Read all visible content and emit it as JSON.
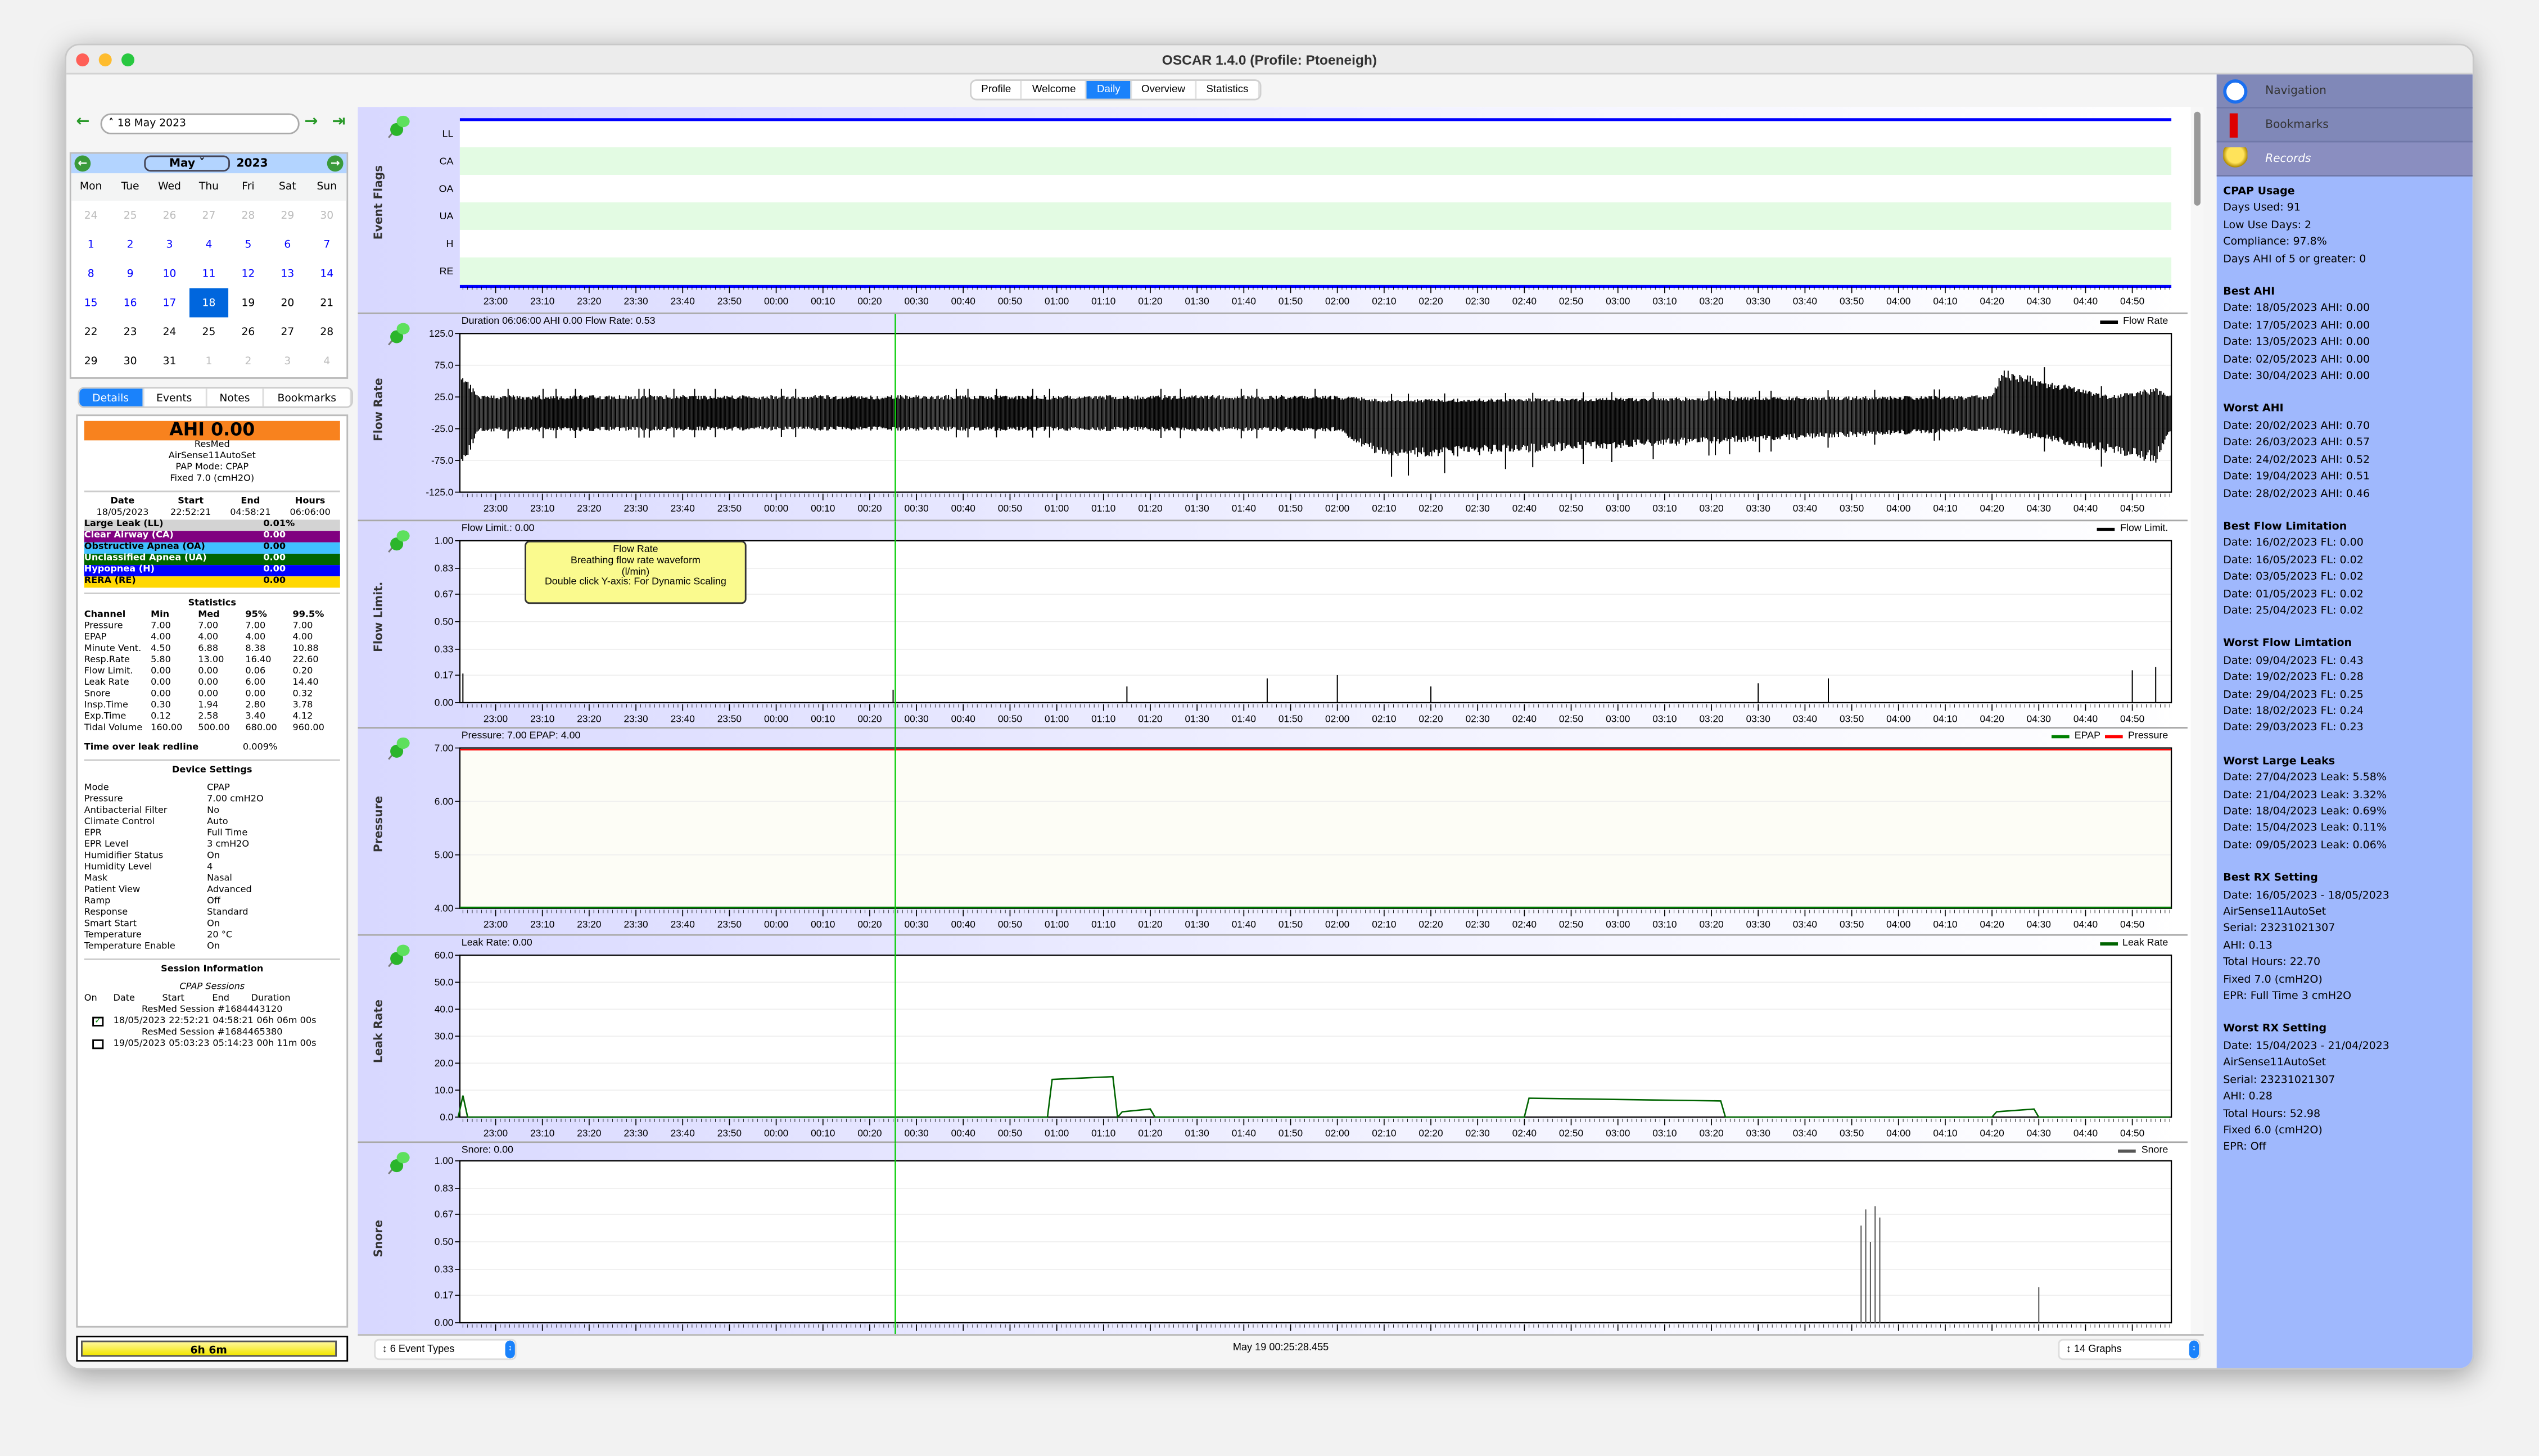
{
  "window": {
    "title": "OSCAR 1.4.0 (Profile: Ptoeneigh)"
  },
  "main_tabs": [
    {
      "label": "Profile"
    },
    {
      "label": "Welcome"
    },
    {
      "label": "Daily",
      "active": true
    },
    {
      "label": "Overview"
    },
    {
      "label": "Statistics"
    }
  ],
  "date_nav": {
    "date": "18 May 2023"
  },
  "calendar": {
    "month": "May",
    "year": "2023",
    "dow": [
      "Mon",
      "Tue",
      "Wed",
      "Thu",
      "Fri",
      "Sat",
      "Sun"
    ],
    "weeks": [
      [
        [
          "24",
          "other"
        ],
        [
          "25",
          "other"
        ],
        [
          "26",
          "other"
        ],
        [
          "27",
          "other"
        ],
        [
          "28",
          "other"
        ],
        [
          "29",
          "other"
        ],
        [
          "30",
          "other"
        ]
      ],
      [
        [
          "1",
          "past"
        ],
        [
          "2",
          "past"
        ],
        [
          "3",
          "past"
        ],
        [
          "4",
          "past"
        ],
        [
          "5",
          "past"
        ],
        [
          "6",
          "past"
        ],
        [
          "7",
          "past"
        ]
      ],
      [
        [
          "8",
          "past"
        ],
        [
          "9",
          "past"
        ],
        [
          "10",
          "past"
        ],
        [
          "11",
          "past"
        ],
        [
          "12",
          "past"
        ],
        [
          "13",
          "past"
        ],
        [
          "14",
          "past"
        ]
      ],
      [
        [
          "15",
          "past"
        ],
        [
          "16",
          "past"
        ],
        [
          "17",
          "past"
        ],
        [
          "18",
          "sel"
        ],
        [
          "19",
          "norm"
        ],
        [
          "20",
          "norm"
        ],
        [
          "21",
          "norm"
        ]
      ],
      [
        [
          "22",
          "norm"
        ],
        [
          "23",
          "norm"
        ],
        [
          "24",
          "norm"
        ],
        [
          "25",
          "norm"
        ],
        [
          "26",
          "norm"
        ],
        [
          "27",
          "norm"
        ],
        [
          "28",
          "norm"
        ]
      ],
      [
        [
          "29",
          "norm"
        ],
        [
          "30",
          "norm"
        ],
        [
          "31",
          "norm"
        ],
        [
          "1",
          "other"
        ],
        [
          "2",
          "other"
        ],
        [
          "3",
          "other"
        ],
        [
          "4",
          "other"
        ]
      ]
    ]
  },
  "left_tabs": [
    {
      "label": "Details",
      "active": true
    },
    {
      "label": "Events"
    },
    {
      "label": "Notes"
    },
    {
      "label": "Bookmarks"
    }
  ],
  "details": {
    "ahi": "AHI 0.00",
    "device_lines": [
      "ResMed",
      "AirSense11AutoSet",
      "PAP Mode: CPAP",
      "Fixed 7.0 (cmH2O)"
    ],
    "summary_headers": [
      "Date",
      "Start",
      "End",
      "Hours"
    ],
    "summary_values": [
      "18/05/2023",
      "22:52:21",
      "04:58:21",
      "06:06:00"
    ],
    "events": [
      {
        "label": "Large Leak (LL)",
        "value": "0.01%",
        "bg": "#d3d3d3",
        "fg": "#000000"
      },
      {
        "label": "Clear Airway (CA)",
        "value": "0.00",
        "bg": "#800080",
        "fg": "#ffffff"
      },
      {
        "label": "Obstructive Apnea (OA)",
        "value": "0.00",
        "bg": "#40c0ff",
        "fg": "#000000"
      },
      {
        "label": "Unclassified Apnea (UA)",
        "value": "0.00",
        "bg": "#006400",
        "fg": "#ffffff"
      },
      {
        "label": "Hypopnea (H)",
        "value": "0.00",
        "bg": "#0000ff",
        "fg": "#ffffff"
      },
      {
        "label": "RERA (RE)",
        "value": "0.00",
        "bg": "#ffd700",
        "fg": "#000000"
      }
    ],
    "statistics_title": "Statistics",
    "stats_headers": [
      "Channel",
      "Min",
      "Med",
      "95%",
      "99.5%"
    ],
    "stats": [
      [
        "Pressure",
        "7.00",
        "7.00",
        "7.00",
        "7.00"
      ],
      [
        "EPAP",
        "4.00",
        "4.00",
        "4.00",
        "4.00"
      ],
      [
        "Minute Vent.",
        "4.50",
        "6.88",
        "8.38",
        "10.88"
      ],
      [
        "Resp.Rate",
        "5.80",
        "13.00",
        "16.40",
        "22.60"
      ],
      [
        "Flow Limit.",
        "0.00",
        "0.00",
        "0.06",
        "0.20"
      ],
      [
        "Leak Rate",
        "0.00",
        "0.00",
        "6.00",
        "14.40"
      ],
      [
        "Snore",
        "0.00",
        "0.00",
        "0.00",
        "0.32"
      ],
      [
        "Insp.Time",
        "0.30",
        "1.94",
        "2.80",
        "3.78"
      ],
      [
        "Exp.Time",
        "0.12",
        "2.58",
        "3.40",
        "4.12"
      ],
      [
        "Tidal Volume",
        "160.00",
        "500.00",
        "680.00",
        "960.00"
      ]
    ],
    "leak_redline_label": "Time over leak redline",
    "leak_redline_value": "0.009%",
    "device_settings_title": "Device Settings",
    "device_settings": [
      [
        "Mode",
        "CPAP"
      ],
      [
        "Pressure",
        "7.00 cmH2O"
      ],
      [
        "Antibacterial Filter",
        "No"
      ],
      [
        "Climate Control",
        "Auto"
      ],
      [
        "EPR",
        "Full Time"
      ],
      [
        "EPR Level",
        "3 cmH2O"
      ],
      [
        "Humidifier Status",
        "On"
      ],
      [
        "Humidity Level",
        "4"
      ],
      [
        "Mask",
        "Nasal"
      ],
      [
        "Patient View",
        "Advanced"
      ],
      [
        "Ramp",
        "Off"
      ],
      [
        "Response",
        "Standard"
      ],
      [
        "Smart Start",
        "On"
      ],
      [
        "Temperature",
        "20 °C"
      ],
      [
        "Temperature Enable",
        "On"
      ]
    ],
    "session_title": "Session Information",
    "sessions_subtitle": "CPAP Sessions",
    "session_headers": [
      "On",
      "Date",
      "Start",
      "End",
      "Duration"
    ],
    "sessions": [
      {
        "name": "ResMed Session #1684443120",
        "on": true,
        "date": "18/05/2023",
        "start": "22:52:21",
        "end": "04:58:21",
        "duration": "06h 06m 00s"
      },
      {
        "name": "ResMed Session #1684465380",
        "on": false,
        "date": "19/05/2023",
        "start": "05:03:23",
        "end": "05:14:23",
        "duration": "00h 11m 00s"
      }
    ]
  },
  "usage_bar": {
    "label": "6h 6m",
    "fraction": 0.98
  },
  "time_axis": {
    "start": "22:52:21",
    "end": "04:58:21",
    "ticks": [
      "23:00",
      "23:10",
      "23:20",
      "23:30",
      "23:40",
      "23:50",
      "00:00",
      "00:10",
      "00:20",
      "00:30",
      "00:40",
      "00:50",
      "01:00",
      "01:10",
      "01:20",
      "01:30",
      "01:40",
      "01:50",
      "02:00",
      "02:10",
      "02:20",
      "02:30",
      "02:40",
      "02:50",
      "03:00",
      "03:10",
      "03:20",
      "03:30",
      "03:40",
      "03:50",
      "04:00",
      "04:10",
      "04:20",
      "04:30",
      "04:40",
      "04:50"
    ]
  },
  "cursor_time": "00:25:28",
  "chart_data": [
    {
      "type": "event-flags",
      "ylabel": "Event Flags",
      "categories": [
        "LL",
        "CA",
        "OA",
        "UA",
        "H",
        "RE"
      ],
      "events": []
    },
    {
      "type": "line",
      "ylabel": "Flow Rate",
      "header": "Duration 06:06:00 AHI 0.00 Flow Rate: 0.53",
      "legend": [
        {
          "name": "Flow Rate",
          "color": "#000000"
        }
      ],
      "ylim": [
        -125,
        125
      ],
      "yticks": [
        "125.0",
        "75.0",
        "25.0",
        "-25.0",
        "-75.0",
        "-125.0"
      ],
      "series": [
        {
          "name": "Flow Rate",
          "envelope": [
            [
              "22:52",
              "-105",
              "75"
            ],
            [
              "22:54",
              "-75",
              "55"
            ],
            [
              "22:56",
              "-30",
              "28"
            ],
            [
              "00:00",
              "-28",
              "28"
            ],
            [
              "02:00",
              "-30",
              "28"
            ],
            [
              "02:10",
              "-75",
              "22"
            ],
            [
              "04:20",
              "-28",
              "28"
            ],
            [
              "04:22",
              "-32",
              "70"
            ],
            [
              "04:45",
              "-65",
              "28"
            ],
            [
              "04:55",
              "-80",
              "40"
            ],
            [
              "04:58",
              "-30",
              "28"
            ]
          ]
        }
      ]
    },
    {
      "type": "line",
      "ylabel": "Flow Limit.",
      "header": "Flow Limit.: 0.00",
      "legend": [
        {
          "name": "Flow Limit.",
          "color": "#000000"
        }
      ],
      "ylim": [
        0,
        1
      ],
      "yticks": [
        "1.00",
        "0.83",
        "0.67",
        "0.50",
        "0.33",
        "0.17",
        "0.00"
      ],
      "series": [
        {
          "name": "Flow Limit.",
          "points": [
            [
              "22:53",
              "0.18"
            ],
            [
              "00:25",
              "0.08"
            ],
            [
              "01:15",
              "0.1"
            ],
            [
              "01:45",
              "0.15"
            ],
            [
              "02:00",
              "0.17"
            ],
            [
              "02:20",
              "0.1"
            ],
            [
              "03:30",
              "0.12"
            ],
            [
              "03:45",
              "0.15"
            ],
            [
              "04:50",
              "0.2"
            ],
            [
              "04:55",
              "0.22"
            ]
          ]
        }
      ]
    },
    {
      "type": "line",
      "ylabel": "Pressure",
      "header": "Pressure: 7.00 EPAP: 4.00",
      "legend": [
        {
          "name": "EPAP",
          "color": "#008000"
        },
        {
          "name": "Pressure",
          "color": "#ff0000"
        }
      ],
      "ylim": [
        4,
        7
      ],
      "yticks": [
        "7.00",
        "6.00",
        "5.00",
        "4.00"
      ],
      "series": [
        {
          "name": "Pressure",
          "value": 7.0
        },
        {
          "name": "EPAP",
          "value": 4.0
        }
      ]
    },
    {
      "type": "line",
      "ylabel": "Leak Rate",
      "header": "Leak Rate: 0.00",
      "legend": [
        {
          "name": "Leak Rate",
          "color": "#006400"
        }
      ],
      "ylim": [
        0,
        60
      ],
      "yticks": [
        "60.0",
        "50.0",
        "40.0",
        "30.0",
        "20.0",
        "10.0",
        "0.0"
      ],
      "series": [
        {
          "name": "Leak Rate",
          "points": [
            [
              "22:52",
              "0"
            ],
            [
              "22:53",
              "8"
            ],
            [
              "22:54",
              "0"
            ],
            [
              "00:58",
              "0"
            ],
            [
              "00:59",
              "14"
            ],
            [
              "01:12",
              "15"
            ],
            [
              "01:13",
              "0"
            ],
            [
              "01:14",
              "2"
            ],
            [
              "01:20",
              "3"
            ],
            [
              "01:21",
              "0"
            ],
            [
              "02:40",
              "0"
            ],
            [
              "02:41",
              "7"
            ],
            [
              "03:22",
              "6"
            ],
            [
              "03:23",
              "0"
            ],
            [
              "04:20",
              "0"
            ],
            [
              "04:21",
              "2"
            ],
            [
              "04:29",
              "3"
            ],
            [
              "04:30",
              "0"
            ],
            [
              "04:58",
              "0"
            ]
          ]
        }
      ]
    },
    {
      "type": "line",
      "ylabel": "Snore",
      "header": "Snore: 0.00",
      "legend": [
        {
          "name": "Snore",
          "color": "#555555"
        }
      ],
      "ylim": [
        0,
        1
      ],
      "yticks": [
        "1.00",
        "0.83",
        "0.67",
        "0.50",
        "0.33",
        "0.17",
        "0.00"
      ],
      "series": [
        {
          "name": "Snore",
          "points": [
            [
              "03:52",
              "0.6"
            ],
            [
              "03:53",
              "0.7"
            ],
            [
              "03:54",
              "0.5"
            ],
            [
              "03:55",
              "0.72"
            ],
            [
              "03:56",
              "0.65"
            ],
            [
              "04:30",
              "0.22"
            ]
          ]
        }
      ]
    }
  ],
  "tooltip": {
    "lines": [
      "Flow Rate",
      "Breathing flow rate waveform",
      "(l/min)",
      "Double click Y-axis: For Dynamic Scaling"
    ]
  },
  "status_bar": {
    "event_types": "6 Event Types",
    "timestamp": "May 19 00:25:28.455",
    "graphs": "14 Graphs"
  },
  "right_panel": {
    "nav": [
      {
        "label": "Navigation",
        "icon": "navigation-icon"
      },
      {
        "label": "Bookmarks",
        "icon": "bookmark-icon"
      },
      {
        "label": "Records",
        "icon": "trophy-icon",
        "active": true
      }
    ],
    "records": [
      {
        "title": "CPAP Usage",
        "lines": [
          "Days Used: 91",
          "Low Use Days: 2",
          "Compliance: 97.8%",
          "Days AHI of 5 or greater: 0"
        ]
      },
      {
        "title": "Best AHI",
        "lines": [
          "Date: 18/05/2023 AHI: 0.00",
          "Date: 17/05/2023 AHI: 0.00",
          "Date: 13/05/2023 AHI: 0.00",
          "Date: 02/05/2023 AHI: 0.00",
          "Date: 30/04/2023 AHI: 0.00"
        ]
      },
      {
        "title": "Worst AHI",
        "lines": [
          "Date: 20/02/2023 AHI: 0.70",
          "Date: 26/03/2023 AHI: 0.57",
          "Date: 24/02/2023 AHI: 0.52",
          "Date: 19/04/2023 AHI: 0.51",
          "Date: 28/02/2023 AHI: 0.46"
        ]
      },
      {
        "title": "Best Flow Limitation",
        "lines": [
          "Date: 16/02/2023 FL: 0.00",
          "Date: 16/05/2023 FL: 0.02",
          "Date: 03/05/2023 FL: 0.02",
          "Date: 01/05/2023 FL: 0.02",
          "Date: 25/04/2023 FL: 0.02"
        ]
      },
      {
        "title": "Worst Flow Limtation",
        "lines": [
          "Date: 09/04/2023 FL: 0.43",
          "Date: 19/02/2023 FL: 0.28",
          "Date: 29/04/2023 FL: 0.25",
          "Date: 18/02/2023 FL: 0.24",
          "Date: 29/03/2023 FL: 0.23"
        ]
      },
      {
        "title": "Worst Large Leaks",
        "lines": [
          "Date: 27/04/2023 Leak: 5.58%",
          "Date: 21/04/2023 Leak: 3.32%",
          "Date: 18/04/2023 Leak: 0.69%",
          "Date: 15/04/2023 Leak: 0.11%",
          "Date: 09/05/2023 Leak: 0.06%"
        ]
      },
      {
        "title": "Best RX Setting",
        "lines": [
          "Date: 16/05/2023 - 18/05/2023",
          "AirSense11AutoSet",
          "Serial: 23231021307",
          "AHI: 0.13",
          "Total Hours: 22.70",
          "Fixed 7.0 (cmH2O)",
          "EPR: Full Time 3 cmH2O"
        ]
      },
      {
        "title": "Worst RX Setting",
        "lines": [
          "Date: 15/04/2023 - 21/04/2023",
          "AirSense11AutoSet",
          "Serial: 23231021307",
          "AHI: 0.28",
          "Total Hours: 52.98",
          "Fixed 6.0 (cmH2O)",
          "EPR: Off"
        ]
      }
    ]
  },
  "colors": {
    "accent": "#1a82fb",
    "ahi_bg": "#f8821e",
    "records_bg": "#9fb8fd",
    "cursor": "#00cc00"
  }
}
